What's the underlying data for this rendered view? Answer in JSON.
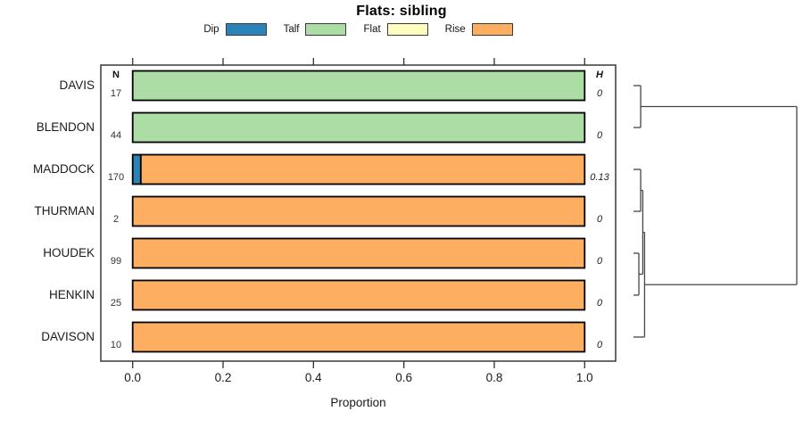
{
  "title": "Flats: sibling",
  "legend": {
    "position": "top",
    "items": [
      {
        "label": "Dip",
        "color": "#2b83ba"
      },
      {
        "label": "Talf",
        "color": "#abdda4"
      },
      {
        "label": "Flat",
        "color": "#ffffbf"
      },
      {
        "label": "Rise",
        "color": "#fdae61"
      }
    ]
  },
  "chart_data": {
    "type": "bar",
    "orientation": "horizontal",
    "stacked": true,
    "title": "Flats: sibling",
    "xlabel": "Proportion",
    "xlim": [
      0,
      1
    ],
    "xticks": [
      0,
      0.2,
      0.4,
      0.6,
      0.8,
      1.0
    ],
    "xtick_labels": [
      "0.0",
      "0.2",
      "0.4",
      "0.6",
      "0.8",
      "1.0"
    ],
    "grid": false,
    "columns": {
      "n_header": "N",
      "h_header": "H"
    },
    "segment_order": [
      "Dip",
      "Talf",
      "Flat",
      "Rise"
    ],
    "categories": [
      "DAVIS",
      "BLENDON",
      "MADDOCK",
      "THURMAN",
      "HOUDEK",
      "HENKIN",
      "DAVISON"
    ],
    "rows": [
      {
        "name": "DAVIS",
        "n": 17,
        "h": "0",
        "segments": {
          "Talf": 1.0
        }
      },
      {
        "name": "BLENDON",
        "n": 44,
        "h": "0",
        "segments": {
          "Talf": 1.0
        }
      },
      {
        "name": "MADDOCK",
        "n": 170,
        "h": "0.13",
        "segments": {
          "Dip": 0.018,
          "Rise": 0.982
        }
      },
      {
        "name": "THURMAN",
        "n": 2,
        "h": "0",
        "segments": {
          "Rise": 1.0
        }
      },
      {
        "name": "HOUDEK",
        "n": 99,
        "h": "0",
        "segments": {
          "Rise": 1.0
        }
      },
      {
        "name": "HENKIN",
        "n": 25,
        "h": "0",
        "segments": {
          "Rise": 1.0
        }
      },
      {
        "name": "DAVISON",
        "n": 10,
        "h": "0",
        "segments": {
          "Rise": 1.0
        }
      }
    ],
    "dendrogram": {
      "side": "right",
      "tree": {
        "height": 1.0,
        "children": [
          {
            "height": 0.044,
            "children": [
              "DAVIS",
              "BLENDON"
            ]
          },
          {
            "height": 0.068,
            "children": [
              {
                "height": 0.057,
                "children": [
                  {
                    "height": 0.044,
                    "children": [
                      "MADDOCK",
                      "THURMAN"
                    ]
                  },
                  {
                    "height": 0.033,
                    "children": [
                      "HOUDEK",
                      "HENKIN"
                    ]
                  }
                ]
              },
              "DAVISON"
            ]
          }
        ]
      }
    }
  }
}
